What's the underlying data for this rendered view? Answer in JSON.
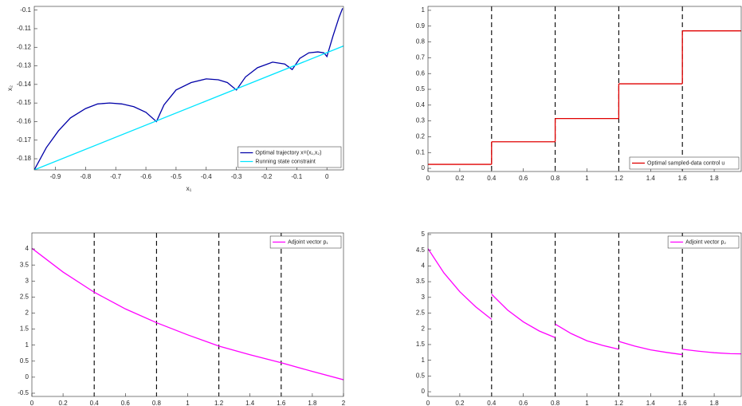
{
  "chart_data": [
    {
      "type": "line",
      "xlabel": "x₁",
      "ylabel": "x₂",
      "legend": "lower right",
      "xlim": [
        -0.97,
        0.055
      ],
      "ylim": [
        -0.186,
        -0.098
      ],
      "xticks": [
        -0.9,
        -0.8,
        -0.7,
        -0.6,
        -0.5,
        -0.4,
        -0.3,
        -0.2,
        -0.1,
        0
      ],
      "yticks": [
        -0.18,
        -0.17,
        -0.16,
        -0.15,
        -0.14,
        -0.13,
        -0.12,
        -0.11,
        -0.1
      ],
      "series": [
        {
          "name": "Optimal trajectory x=(x₁,x₂)",
          "color": "#0000a8",
          "x": [
            -0.97,
            -0.93,
            -0.89,
            -0.85,
            -0.8,
            -0.76,
            -0.72,
            -0.68,
            -0.64,
            -0.6,
            -0.565,
            -0.54,
            -0.5,
            -0.45,
            -0.4,
            -0.36,
            -0.33,
            -0.3,
            -0.27,
            -0.23,
            -0.18,
            -0.14,
            -0.115,
            -0.09,
            -0.06,
            -0.03,
            -0.01,
            0,
            0.02,
            0.04,
            0.052
          ],
          "values": [
            -0.186,
            -0.174,
            -0.165,
            -0.158,
            -0.153,
            -0.1505,
            -0.15,
            -0.1505,
            -0.152,
            -0.155,
            -0.16,
            -0.151,
            -0.143,
            -0.139,
            -0.137,
            -0.1375,
            -0.139,
            -0.143,
            -0.136,
            -0.131,
            -0.128,
            -0.129,
            -0.132,
            -0.126,
            -0.123,
            -0.1225,
            -0.123,
            -0.125,
            -0.114,
            -0.104,
            -0.099
          ]
        },
        {
          "name": "Running state constraint",
          "color": "#00e5ff",
          "x": [
            -0.97,
            0.055
          ],
          "values": [
            -0.186,
            -0.1193
          ]
        }
      ]
    },
    {
      "type": "step",
      "legend": "lower right",
      "xlim": [
        0,
        1.97
      ],
      "ylim": [
        -0.02,
        1.025
      ],
      "xticks": [
        0,
        0.2,
        0.4,
        0.6,
        0.8,
        1,
        1.2,
        1.4,
        1.6,
        1.8
      ],
      "yticks": [
        0,
        0.1,
        0.2,
        0.3,
        0.4,
        0.5,
        0.6,
        0.7,
        0.8,
        0.9,
        1
      ],
      "vlines": [
        0.4,
        0.8,
        1.2,
        1.6
      ],
      "series": [
        {
          "name": "Optimal sampled-data control u",
          "color": "#e00000",
          "bins": [
            0,
            0.4,
            0.8,
            1.2,
            1.6,
            2
          ],
          "values": [
            0.025,
            0.168,
            0.315,
            0.535,
            0.87
          ]
        }
      ]
    },
    {
      "type": "line",
      "legend": "upper right",
      "xlim": [
        0,
        2
      ],
      "ylim": [
        -0.6,
        4.5
      ],
      "xticks": [
        0,
        0.2,
        0.4,
        0.6,
        0.8,
        1,
        1.2,
        1.4,
        1.6,
        1.8,
        2
      ],
      "yticks": [
        -0.5,
        0,
        0.5,
        1,
        1.5,
        2,
        2.5,
        3,
        3.5,
        4
      ],
      "vlines": [
        0.4,
        0.8,
        1.2,
        1.6
      ],
      "series": [
        {
          "name": "Adjoint vector p₁",
          "color": "#ff00ff",
          "x": [
            0,
            0.2,
            0.4,
            0.6,
            0.8,
            1,
            1.2,
            1.4,
            1.6,
            1.8,
            2
          ],
          "values": [
            4.02,
            3.28,
            2.65,
            2.13,
            1.7,
            1.32,
            0.97,
            0.7,
            0.45,
            0.18,
            -0.08
          ]
        }
      ]
    },
    {
      "type": "line",
      "legend": "upper right",
      "xlim": [
        0,
        1.97
      ],
      "ylim": [
        -0.15,
        5.05
      ],
      "xticks": [
        0,
        0.2,
        0.4,
        0.6,
        0.8,
        1,
        1.2,
        1.4,
        1.6,
        1.8
      ],
      "yticks": [
        0,
        0.5,
        1,
        1.5,
        2,
        2.5,
        3,
        3.5,
        4,
        4.5,
        5
      ],
      "vlines": [
        0.4,
        0.8,
        1.2,
        1.6
      ],
      "series": [
        {
          "name": "Adjoint vector p₂",
          "color": "#ff00ff",
          "x": [
            0,
            0.1,
            0.2,
            0.3,
            0.4,
            0.4,
            0.4,
            0.5,
            0.6,
            0.7,
            0.8,
            0.8,
            0.8,
            0.9,
            1,
            1.1,
            1.2,
            1.2,
            1.2,
            1.3,
            1.4,
            1.5,
            1.6,
            1.6,
            1.6,
            1.7,
            1.8,
            1.9,
            2
          ],
          "values": [
            4.55,
            3.78,
            3.18,
            2.7,
            2.3,
            null,
            3.1,
            2.6,
            2.22,
            1.93,
            1.72,
            null,
            2.15,
            1.85,
            1.62,
            1.47,
            1.35,
            null,
            1.6,
            1.45,
            1.33,
            1.25,
            1.18,
            null,
            1.35,
            1.29,
            1.24,
            1.21,
            1.2
          ]
        }
      ]
    }
  ]
}
